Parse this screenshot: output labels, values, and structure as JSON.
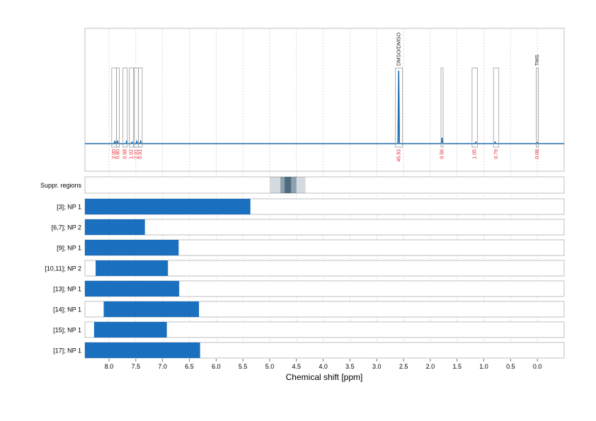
{
  "chart_data": {
    "type": "nmr_spectrum_with_ranges",
    "xlabel": "Chemical shift [ppm]",
    "x_reversed": true,
    "xlim": [
      8.45,
      -0.5
    ],
    "x_ticks": [
      "8.0",
      "7.5",
      "7.0",
      "6.5",
      "6.0",
      "5.5",
      "5.0",
      "4.5",
      "4.0",
      "3.5",
      "3.0",
      "2.5",
      "2.0",
      "1.5",
      "1.0",
      "0.5",
      "0.0"
    ],
    "grid": true,
    "spectrum": {
      "series_color": "#1f6fb0",
      "integral_color": "#e8212b",
      "peaks": [
        {
          "ppm": 7.89,
          "height": 0.04
        },
        {
          "ppm": 7.84,
          "height": 0.03
        },
        {
          "ppm": 7.67,
          "height": 0.03
        },
        {
          "ppm": 7.57,
          "height": 0.02
        },
        {
          "ppm": 7.48,
          "height": 0.03
        },
        {
          "ppm": 7.41,
          "height": 0.03
        },
        {
          "ppm": 2.59,
          "height": 1.0
        },
        {
          "ppm": 1.78,
          "height": 0.08
        },
        {
          "ppm": 1.15,
          "height": 0.02
        },
        {
          "ppm": 0.79,
          "height": 0.02
        },
        {
          "ppm": 0.0,
          "height": 0.01
        }
      ],
      "integration_regions": [
        {
          "from": 7.95,
          "to": 7.86,
          "label": "2.00"
        },
        {
          "from": 7.86,
          "to": 7.81,
          "label": "0.80"
        },
        {
          "from": 7.74,
          "to": 7.66,
          "label": "0.98"
        },
        {
          "from": 7.62,
          "to": 7.54,
          "label": "1.02"
        },
        {
          "from": 7.53,
          "to": 7.45,
          "label": "2.01"
        },
        {
          "from": 7.45,
          "to": 7.38,
          "label": "0.91"
        },
        {
          "from": 2.65,
          "to": 2.52,
          "label": "45.93"
        },
        {
          "from": 1.8,
          "to": 1.76,
          "label": "0.56"
        },
        {
          "from": 1.22,
          "to": 1.12,
          "label": "1.05"
        },
        {
          "from": 0.82,
          "to": 0.72,
          "label": "0.79"
        },
        {
          "from": 0.02,
          "to": -0.02,
          "label": "0.08"
        }
      ],
      "annotations": [
        {
          "ppm": 2.585,
          "text": "DMSO/DMSO"
        },
        {
          "ppm": 0.0,
          "text": "TMS"
        }
      ]
    },
    "suppressed_regions": {
      "label": "Suppr. regions",
      "bands": [
        {
          "from": 5.0,
          "to": 4.33,
          "level": 0.22
        },
        {
          "from": 4.8,
          "to": 4.5,
          "level": 0.45
        },
        {
          "from": 4.72,
          "to": 4.6,
          "level": 0.75
        }
      ]
    },
    "range_rows": [
      {
        "label": "[3]; NP 1",
        "from": 8.45,
        "to": 5.36
      },
      {
        "label": "[6,7]; NP 2",
        "from": 8.45,
        "to": 7.33
      },
      {
        "label": "[9]; NP 1",
        "from": 8.45,
        "to": 6.7
      },
      {
        "label": "[10,11]; NP 2",
        "from": 8.25,
        "to": 6.9
      },
      {
        "label": "[13]; NP 1",
        "from": 8.45,
        "to": 6.69
      },
      {
        "label": "[14]; NP 1",
        "from": 8.1,
        "to": 6.32
      },
      {
        "label": "[15]; NP 1",
        "from": 8.28,
        "to": 6.92
      },
      {
        "label": "[17]; NP 1",
        "from": 8.45,
        "to": 6.3
      }
    ],
    "bar_color": "#1a6fbf"
  }
}
